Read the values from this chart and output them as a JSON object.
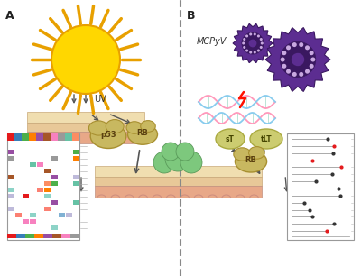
{
  "bg_color": "#ffffff",
  "panel_A_label": "A",
  "panel_B_label": "B",
  "uv_label": "UV",
  "mcpyv_label": "MCPyV",
  "sT_label": "sT",
  "tLT_label": "tLT",
  "p53_label": "p53",
  "RB_label_A": "RB",
  "RB_label_B": "RB",
  "arrow_color": "#555555",
  "sun_color": "#FFD700",
  "sun_outline": "#E8A000",
  "ray_color": "#E8A000",
  "virus_color": "#5C2D91",
  "virus_inner_color": "#9B6ABE",
  "virus_dot_color": "#C8A8E0",
  "protein_color": "#C8B860",
  "protein_outline": "#A89030",
  "tumor_color": "#7DC87D",
  "skin_top_color": "#F0DEB0",
  "skin_mid_color": "#E8C898",
  "skin_bot_color": "#E8A888",
  "skin_deep_color": "#F5C0B0"
}
